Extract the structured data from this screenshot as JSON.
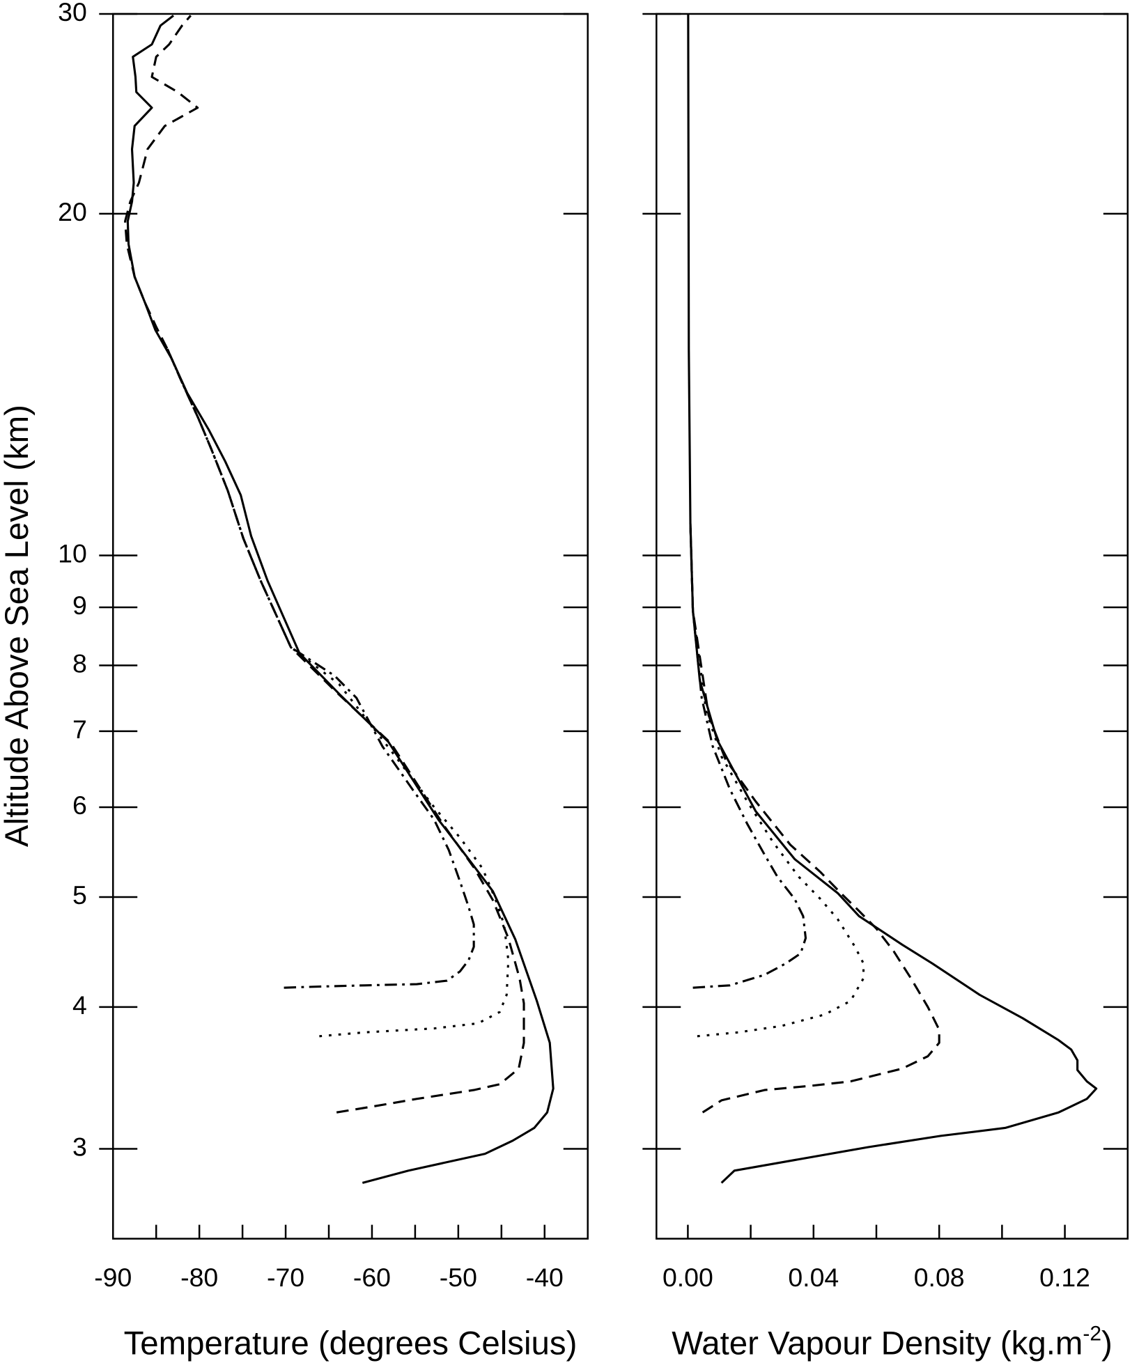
{
  "chart_data": [
    {
      "type": "line",
      "xlabel": "Temperature (degrees Celsius)",
      "ylabel": "Altitude Above Sea Level (km)",
      "xlim": [
        -90,
        -35
      ],
      "xticks": [
        -90,
        -80,
        -70,
        -60,
        -50,
        -40
      ],
      "xminorticks": [
        -85,
        -75,
        -65,
        -55,
        -45
      ],
      "ylim": [
        2.5,
        30
      ],
      "yticks": [
        3,
        4,
        5,
        6,
        7,
        8,
        9,
        10,
        20,
        30
      ],
      "ylog": true,
      "series": [
        {
          "dash": "solid",
          "color": "#000000",
          "x": [
            -61.1,
            -55.8,
            -46.9,
            -43.7,
            -41.2,
            -39.7,
            -39.0,
            -39.4,
            -40.9,
            -43.4,
            -46.0,
            -48.8,
            -52.3,
            -58.1,
            -63.8,
            -68.4,
            -72.1,
            -74.0,
            -75.2,
            -77.0,
            -78.9,
            -81.4,
            -83.2,
            -85.1,
            -86.3,
            -87.5,
            -88.2,
            -88.3,
            -87.8,
            -87.6,
            -87.8,
            -87.5,
            -85.5,
            -87.3,
            -87.4,
            -87.7,
            -85.5,
            -84.5,
            -83.0
          ],
          "y": [
            2.8,
            2.87,
            2.97,
            3.05,
            3.13,
            3.23,
            3.39,
            3.72,
            4.05,
            4.59,
            5.06,
            5.4,
            5.85,
            6.85,
            7.55,
            8.2,
            9.5,
            10.4,
            11.3,
            12.1,
            12.9,
            13.9,
            14.9,
            15.8,
            16.7,
            17.6,
            18.8,
            19.7,
            20.5,
            21.3,
            22.8,
            23.9,
            24.8,
            25.6,
            26.4,
            27.5,
            28.2,
            29.3,
            29.9
          ]
        },
        {
          "dash": "dashed",
          "color": "#000000",
          "x": [
            -64.1,
            -59.8,
            -54.8,
            -48.2,
            -45.2,
            -43.0,
            -42.4,
            -42.4,
            -42.9,
            -44.2,
            -46.0,
            -48.2,
            -51.8,
            -57.8,
            -64.3,
            -69.4,
            -72.9,
            -74.9,
            -76.7,
            -78.6,
            -80.1,
            -82.0,
            -83.7,
            -85.0,
            -86.3,
            -87.5,
            -88.4,
            -88.6,
            -88.0,
            -87.0,
            -86.0,
            -84.0,
            -80.2,
            -82.5,
            -85.5,
            -85.0,
            -83.5,
            -82.0,
            -81.0
          ],
          "y": [
            3.23,
            3.27,
            3.32,
            3.38,
            3.42,
            3.53,
            3.72,
            4.03,
            4.24,
            4.6,
            4.97,
            5.31,
            5.8,
            6.83,
            7.6,
            8.3,
            9.5,
            10.35,
            11.4,
            12.4,
            13.2,
            14.2,
            15.2,
            15.9,
            16.7,
            17.6,
            18.8,
            19.7,
            20.5,
            21.3,
            22.8,
            23.9,
            24.8,
            25.6,
            26.4,
            27.5,
            28.2,
            29.3,
            29.9
          ]
        },
        {
          "dash": "dotted",
          "color": "#000000",
          "x": [
            -66.1,
            -60.8,
            -52.8,
            -47.7,
            -45.2,
            -44.4,
            -44.2,
            -44.7,
            -45.7,
            -47.2,
            -49.8,
            -52.8,
            -57.8,
            -63.8,
            -69.4,
            -72.9,
            -74.9,
            -76.7,
            -78.6,
            -80.1,
            -82.0,
            -83.7
          ],
          "y": [
            3.77,
            3.8,
            3.83,
            3.87,
            3.96,
            4.1,
            4.4,
            4.73,
            4.98,
            5.3,
            5.64,
            6.0,
            6.73,
            7.7,
            8.3,
            9.5,
            10.35,
            11.4,
            12.4,
            13.2,
            14.2,
            15.2
          ]
        },
        {
          "dash": "dashdot",
          "color": "#000000",
          "x": [
            -70.2,
            -65.9,
            -60.8,
            -54.8,
            -51.3,
            -49.8,
            -48.8,
            -48.2,
            -48.2,
            -48.8,
            -49.8,
            -51.1,
            -52.8,
            -55.3,
            -58.8,
            -61.8,
            -64.3,
            -69.4,
            -72.9,
            -74.9,
            -76.7,
            -78.6,
            -80.1,
            -82.0,
            -83.7
          ],
          "y": [
            4.16,
            4.17,
            4.18,
            4.19,
            4.22,
            4.3,
            4.4,
            4.52,
            4.73,
            4.9,
            5.16,
            5.5,
            5.85,
            6.22,
            6.79,
            7.49,
            7.83,
            8.3,
            9.5,
            10.35,
            11.4,
            12.4,
            13.2,
            14.2,
            15.2
          ]
        }
      ]
    },
    {
      "type": "line",
      "xlabel": "Water Vapour Density (kg.m",
      "xlabel_sup": "-2",
      "xlabel_end": ")",
      "xlim": [
        -0.01,
        0.14
      ],
      "xticks": [
        {
          "value": 0,
          "label": "0.00"
        },
        {
          "value": 0.04,
          "label": "0.04"
        },
        {
          "value": 0.08,
          "label": "0.08"
        },
        {
          "value": 0.12,
          "label": "0.12"
        }
      ],
      "xminorticks": [
        0.02,
        0.06,
        0.1
      ],
      "ylim": [
        2.5,
        30
      ],
      "yticks": [
        3,
        4,
        5,
        6,
        7,
        8,
        9,
        10,
        20,
        30
      ],
      "ylog": true,
      "series": [
        {
          "dash": "solid",
          "color": "#000000",
          "x": [
            0.0107,
            0.0148,
            0.0271,
            0.0573,
            0.0805,
            0.101,
            0.118,
            0.127,
            0.13,
            0.127,
            0.124,
            0.124,
            0.122,
            0.118,
            0.1066,
            0.0929,
            0.0778,
            0.0682,
            0.0545,
            0.0477,
            0.034,
            0.0216,
            0.0093,
            0.0038,
            0.0016,
            0.0008,
            0.0003,
            0.0001
          ],
          "y": [
            2.8,
            2.87,
            2.91,
            3.01,
            3.08,
            3.13,
            3.23,
            3.32,
            3.39,
            3.44,
            3.52,
            3.59,
            3.67,
            3.74,
            3.91,
            4.1,
            4.37,
            4.54,
            4.81,
            5.04,
            5.4,
            5.95,
            6.88,
            7.76,
            8.94,
            10.67,
            15.2,
            30
          ]
        },
        {
          "dash": "dashed",
          "color": "#000000",
          "x": [
            0.0047,
            0.0107,
            0.0244,
            0.0395,
            0.0518,
            0.0682,
            0.0764,
            0.08,
            0.08,
            0.0764,
            0.071,
            0.0655,
            0.06,
            0.0545,
            0.049,
            0.0422,
            0.0326,
            0.0216,
            0.012,
            0.0066,
            0.0016,
            0.0008
          ],
          "y": [
            3.23,
            3.31,
            3.38,
            3.41,
            3.44,
            3.53,
            3.62,
            3.72,
            3.82,
            4.0,
            4.24,
            4.48,
            4.69,
            4.86,
            5.03,
            5.26,
            5.56,
            6.07,
            6.61,
            7.23,
            8.94,
            10.67
          ]
        },
        {
          "dash": "dotted",
          "color": "#000000",
          "x": [
            0.003,
            0.0162,
            0.0299,
            0.0436,
            0.0518,
            0.0559,
            0.0559,
            0.0532,
            0.0477,
            0.0422,
            0.0353,
            0.0271,
            0.0189,
            0.0107,
            0.0058,
            0.0016,
            0.0008
          ],
          "y": [
            3.77,
            3.8,
            3.85,
            3.94,
            4.05,
            4.24,
            4.37,
            4.52,
            4.78,
            4.98,
            5.21,
            5.59,
            6.07,
            6.65,
            7.3,
            8.94,
            10.67
          ]
        },
        {
          "dash": "dashdot",
          "color": "#000000",
          "x": [
            0.0016,
            0.0134,
            0.0244,
            0.0312,
            0.0359,
            0.0375,
            0.0367,
            0.034,
            0.0285,
            0.0244,
            0.0189,
            0.0134,
            0.0079,
            0.0044,
            0.0016,
            0.0008
          ],
          "y": [
            4.16,
            4.18,
            4.27,
            4.37,
            4.46,
            4.6,
            4.81,
            4.98,
            5.21,
            5.45,
            5.8,
            6.22,
            6.79,
            7.49,
            8.94,
            10.67
          ]
        }
      ]
    }
  ]
}
